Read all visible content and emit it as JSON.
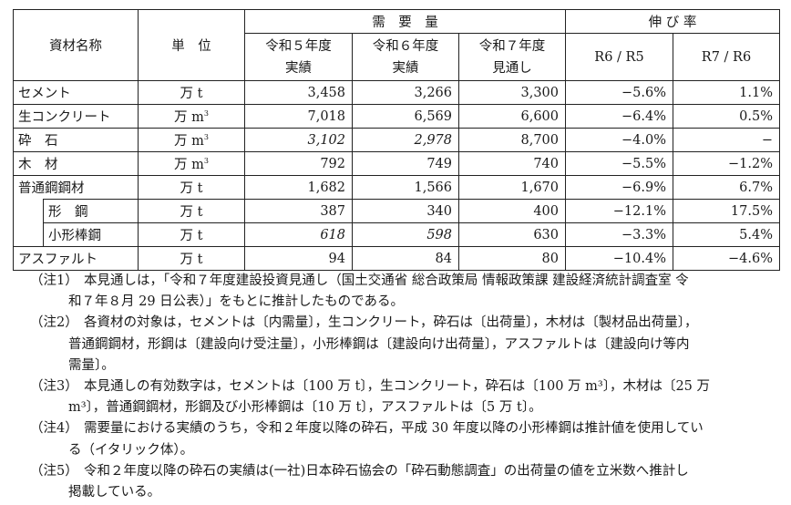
{
  "table": {
    "header": {
      "material": "資材名称",
      "unit": "単　位",
      "demand": "需　要　量",
      "growth": "伸 び 率",
      "r5": [
        "令和５年度",
        "実績"
      ],
      "r6": [
        "令和６年度",
        "実績"
      ],
      "r7": [
        "令和７年度",
        "見通し"
      ],
      "r6r5": "R6 / R5",
      "r7r6": "R7 / R6"
    },
    "rows": [
      {
        "name": "セメント",
        "unit": "万 t",
        "r5": "3,458",
        "r6": "3,266",
        "r7": "3,300",
        "g1": "−5.6%",
        "g2": "1.1%"
      },
      {
        "name": "生コンクリート",
        "unit": "万 m",
        "unit_sup": "3",
        "r5": "7,018",
        "r6": "6,569",
        "r7": "6,600",
        "g1": "−6.4%",
        "g2": "0.5%"
      },
      {
        "name": "砕　石",
        "unit": "万 m",
        "unit_sup": "3",
        "r5": "3,102",
        "r6": "2,978",
        "r7": "8,700",
        "g1": "−4.0%",
        "g2": "−"
      },
      {
        "name": "木　材",
        "unit": "万 m",
        "unit_sup": "3",
        "r5": "792",
        "r6": "749",
        "r7": "740",
        "g1": "−5.5%",
        "g2": "−1.2%"
      },
      {
        "name": "普通鋼鋼材",
        "unit": "万 t",
        "r5": "1,682",
        "r6": "1,566",
        "r7": "1,670",
        "g1": "−6.9%",
        "g2": "6.7%"
      },
      {
        "name": "形　鋼",
        "unit": "万 t",
        "r5": "387",
        "r6": "340",
        "r7": "400",
        "g1": "−12.1%",
        "g2": "17.5%"
      },
      {
        "name": "小形棒鋼",
        "unit": "万 t",
        "r5": "618",
        "r6": "598",
        "r7": "630",
        "g1": "−3.3%",
        "g2": "5.4%"
      },
      {
        "name": "アスファルト",
        "unit": "万 t",
        "r5": "94",
        "r6": "84",
        "r7": "80",
        "g1": "−10.4%",
        "g2": "−4.6%"
      }
    ]
  },
  "notes": [
    {
      "label": "（注1）",
      "lines": [
        "本見通しは，「令和７年度建設投資見通し（国土交通省 総合政策局 情報政策課 建設経済統計調査室 令",
        "和７年８月 29 日公表）」をもとに推計したものである。"
      ]
    },
    {
      "label": "（注2）",
      "lines": [
        "各資材の対象は，セメントは〔内需量〕，生コンクリート，砕石は〔出荷量〕，木材は〔製材品出荷量〕，",
        "普通鋼鋼材，形鋼は〔建設向け受注量〕，小形棒鋼は〔建設向け出荷量〕，アスファルトは〔建設向け等内",
        "需量〕。"
      ]
    },
    {
      "label": "（注3）",
      "lines": [
        "本見通しの有効数字は，セメントは〔100 万 t〕，生コンクリート，砕石は〔100 万 m³〕，木材は〔25 万",
        "m³〕，普通鋼鋼材，形鋼及び小形棒鋼は〔10 万 t〕，アスファルトは〔5 万 t〕。"
      ]
    },
    {
      "label": "（注4）",
      "lines": [
        "需要量における実績のうち，令和２年度以降の砕石，平成 30 年度以降の小形棒鋼は推計値を使用してい",
        "る（イタリック体）。"
      ]
    },
    {
      "label": "（注5）",
      "lines": [
        "令和２年度以降の砕石の実績は(一社)日本砕石協会の「砕石動態調査」の出荷量の値を立米数へ推計し",
        "掲載している。"
      ]
    }
  ]
}
